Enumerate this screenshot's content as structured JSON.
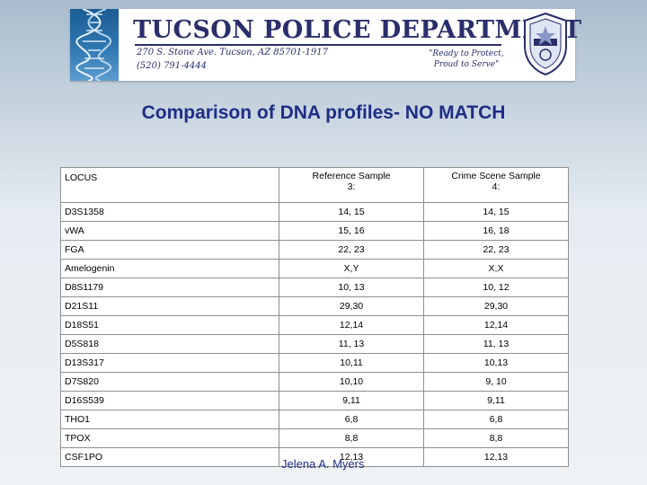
{
  "header": {
    "department": "TUCSON POLICE DEPARTMENT",
    "address": "270 S. Stone Ave.  Tucson, AZ  85701-1917",
    "phone": "(520) 791-4444",
    "motto_line1": "\"Ready to Protect,",
    "motto_line2": "Proud to Serve\""
  },
  "title": "Comparison of DNA profiles- NO MATCH",
  "table": {
    "headers": {
      "locus": "LOCUS",
      "reference_line1": "Reference Sample",
      "reference_line2": "3:",
      "crime_line1": "Crime Scene Sample",
      "crime_line2": "4:"
    },
    "rows": [
      {
        "locus": "D3S1358",
        "reference": "14, 15",
        "crime": "14, 15"
      },
      {
        "locus": "vWA",
        "reference": "15, 16",
        "crime": "16, 18"
      },
      {
        "locus": "FGA",
        "reference": "22, 23",
        "crime": "22, 23"
      },
      {
        "locus": "Amelogenin",
        "reference": "X,Y",
        "crime": "X,X"
      },
      {
        "locus": "D8S1179",
        "reference": "10, 13",
        "crime": "10, 12"
      },
      {
        "locus": "D21S11",
        "reference": "29,30",
        "crime": "29,30"
      },
      {
        "locus": "D18S51",
        "reference": "12,14",
        "crime": "12,14"
      },
      {
        "locus": "D5S818",
        "reference": "11, 13",
        "crime": "11, 13"
      },
      {
        "locus": "D13S317",
        "reference": "10,11",
        "crime": "10,13"
      },
      {
        "locus": "D7S820",
        "reference": "10,10",
        "crime": "9, 10"
      },
      {
        "locus": "D16S539",
        "reference": "9,11",
        "crime": "9,11"
      },
      {
        "locus": "THO1",
        "reference": "6,8",
        "crime": "6,8"
      },
      {
        "locus": "TPOX",
        "reference": "8,8",
        "crime": "8,8"
      },
      {
        "locus": "CSF1PO",
        "reference": "12,13",
        "crime": "12,13"
      }
    ]
  },
  "author": "Jelena A. Myers",
  "colors": {
    "title": "#1f2d87",
    "crime_header": "#cc0000",
    "department_text": "#2a2f6b"
  },
  "icons": {
    "banner_left": "dna-helix-icon",
    "banner_right": "police-badge-icon"
  }
}
